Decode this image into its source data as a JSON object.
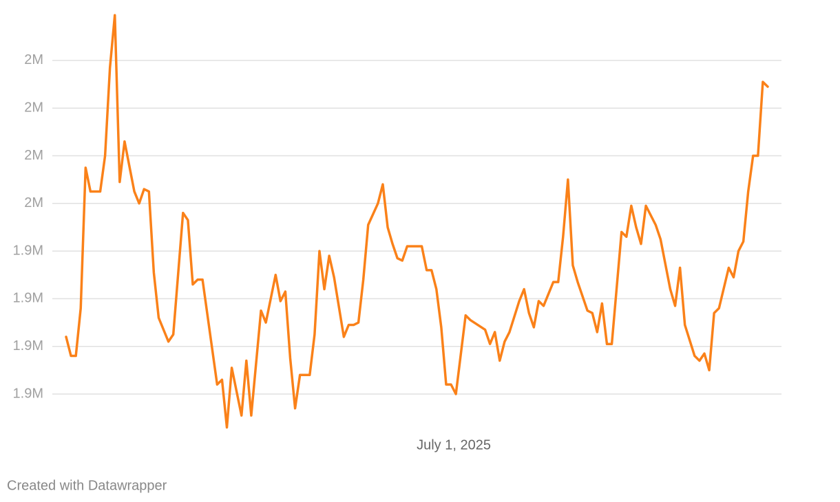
{
  "chart_data": {
    "type": "line",
    "color": "#fa8119",
    "grid": true,
    "footer": "Created with Datawrapper",
    "xlim": [
      "2025-04-13",
      "2025-09-04"
    ],
    "xticks": [
      {
        "value": "2025-07-01",
        "label": "July 1, 2025"
      }
    ],
    "ylim": [
      1860000,
      2040000
    ],
    "yticks": [
      {
        "value": 1880000,
        "label": "1.9M"
      },
      {
        "value": 1900000,
        "label": "1.9M"
      },
      {
        "value": 1920000,
        "label": "1.9M"
      },
      {
        "value": 1940000,
        "label": "1.9M"
      },
      {
        "value": 1960000,
        "label": "2M"
      },
      {
        "value": 1980000,
        "label": "2M"
      },
      {
        "value": 2000000,
        "label": "2M"
      },
      {
        "value": 2020000,
        "label": "2M"
      }
    ],
    "x": [
      "2025-04-13",
      "2025-04-14",
      "2025-04-15",
      "2025-04-16",
      "2025-04-17",
      "2025-04-18",
      "2025-04-20",
      "2025-04-21",
      "2025-04-22",
      "2025-04-23",
      "2025-04-24",
      "2025-04-25",
      "2025-04-27",
      "2025-04-28",
      "2025-04-29",
      "2025-04-30",
      "2025-05-01",
      "2025-05-02",
      "2025-05-04",
      "2025-05-05",
      "2025-05-07",
      "2025-05-08",
      "2025-05-09",
      "2025-05-10",
      "2025-05-11",
      "2025-05-14",
      "2025-05-15",
      "2025-05-16",
      "2025-05-17",
      "2025-05-19",
      "2025-05-20",
      "2025-05-21",
      "2025-05-23",
      "2025-05-24",
      "2025-05-26",
      "2025-05-27",
      "2025-05-28",
      "2025-05-29",
      "2025-05-30",
      "2025-05-31",
      "2025-06-02",
      "2025-06-03",
      "2025-06-04",
      "2025-06-05",
      "2025-06-06",
      "2025-06-07",
      "2025-06-09",
      "2025-06-10",
      "2025-06-11",
      "2025-06-12",
      "2025-06-13",
      "2025-06-14",
      "2025-06-16",
      "2025-06-17",
      "2025-06-18",
      "2025-06-19",
      "2025-06-20",
      "2025-06-21",
      "2025-06-22",
      "2025-06-25",
      "2025-06-26",
      "2025-06-27",
      "2025-06-28",
      "2025-06-29",
      "2025-06-30",
      "2025-07-01",
      "2025-07-02",
      "2025-07-04",
      "2025-07-05",
      "2025-07-08",
      "2025-07-09",
      "2025-07-10",
      "2025-07-11",
      "2025-07-12",
      "2025-07-13",
      "2025-07-15",
      "2025-07-16",
      "2025-07-17",
      "2025-07-18",
      "2025-07-19",
      "2025-07-20",
      "2025-07-22",
      "2025-07-23",
      "2025-07-24",
      "2025-07-25",
      "2025-07-26",
      "2025-07-27",
      "2025-07-29",
      "2025-07-30",
      "2025-07-31",
      "2025-08-01",
      "2025-08-02",
      "2025-08-03",
      "2025-08-05",
      "2025-08-06",
      "2025-08-07",
      "2025-08-08",
      "2025-08-09",
      "2025-08-10",
      "2025-08-12",
      "2025-08-13",
      "2025-08-15",
      "2025-08-16",
      "2025-08-17",
      "2025-08-18",
      "2025-08-20",
      "2025-08-21",
      "2025-08-22",
      "2025-08-23",
      "2025-08-24",
      "2025-08-25",
      "2025-08-27",
      "2025-08-28",
      "2025-08-29",
      "2025-08-30",
      "2025-08-31",
      "2025-09-01",
      "2025-09-02",
      "2025-09-03",
      "2025-09-04"
    ],
    "values": [
      1904000,
      1896000,
      1896000,
      1916000,
      1975000,
      1965000,
      1965000,
      1980000,
      2017000,
      2039000,
      1969000,
      1986000,
      1965000,
      1960000,
      1966000,
      1965000,
      1931000,
      1912000,
      1902000,
      1905000,
      1956000,
      1953000,
      1926000,
      1928000,
      1928000,
      1884000,
      1886000,
      1866000,
      1891000,
      1871000,
      1894000,
      1871000,
      1915000,
      1910000,
      1930000,
      1919000,
      1923000,
      1895000,
      1874000,
      1888000,
      1888000,
      1905000,
      1940000,
      1924000,
      1938000,
      1929000,
      1904000,
      1909000,
      1909000,
      1910000,
      1928000,
      1951000,
      1960000,
      1968000,
      1950000,
      1943000,
      1937000,
      1936000,
      1942000,
      1942000,
      1932000,
      1932000,
      1924000,
      1908000,
      1884000,
      1884000,
      1880000,
      1913000,
      1911000,
      1907000,
      1901000,
      1906000,
      1894000,
      1902000,
      1906000,
      1919000,
      1924000,
      1914000,
      1908000,
      1919000,
      1917000,
      1927000,
      1927000,
      1946000,
      1970000,
      1934000,
      1927000,
      1915000,
      1914000,
      1906000,
      1918000,
      1901000,
      1901000,
      1948000,
      1946000,
      1959000,
      1950000,
      1943000,
      1959000,
      1951000,
      1945000,
      1924000,
      1917000,
      1933000,
      1909000,
      1896000,
      1894000,
      1897000,
      1890000,
      1914000,
      1916000,
      1933000,
      1929000,
      1940000,
      1944000,
      1965000,
      1980000,
      1980000,
      2011000,
      2009000
    ]
  }
}
